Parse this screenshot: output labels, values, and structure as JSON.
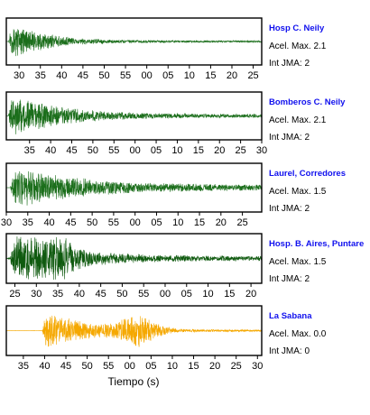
{
  "chart_data": {
    "type": "line",
    "xlabel": "Tiempo (s)",
    "panels": [
      {
        "station": "Hosp C. Neily",
        "acel_label": "Acel. Max. 2.1",
        "int_label": "Int JMA: 2",
        "color": "#1b6e1b",
        "xlim": [
          27,
          87
        ],
        "x_ticks": [
          30,
          35,
          40,
          45,
          50,
          55,
          60,
          65,
          70,
          75,
          80,
          85
        ],
        "tick_labels": [
          "30",
          "35",
          "40",
          "45",
          "50",
          "55",
          "00",
          "05",
          "10",
          "15",
          "20",
          "25"
        ],
        "onset_s": 27.5,
        "decay_s": 8,
        "peak_amp": 1.0,
        "coda_amp": 0.05,
        "bursts": []
      },
      {
        "station": "Bomberos C. Neily",
        "acel_label": "Acel. Max. 2.1",
        "int_label": "Int JMA: 2",
        "color": "#1b6e1b",
        "xlim": [
          29.5,
          90
        ],
        "x_ticks": [
          35,
          40,
          45,
          50,
          55,
          60,
          65,
          70,
          75,
          80,
          85,
          90
        ],
        "tick_labels": [
          "35",
          "40",
          "45",
          "50",
          "55",
          "00",
          "05",
          "10",
          "15",
          "20",
          "25",
          "30"
        ],
        "onset_s": 30,
        "decay_s": 12,
        "peak_amp": 1.0,
        "coda_amp": 0.08,
        "bursts": []
      },
      {
        "station": "Laurel, Corredores",
        "acel_label": "Acel. Max. 1.5",
        "int_label": "Int JMA: 2",
        "color": "#1b6e1b",
        "xlim": [
          30,
          89.5
        ],
        "x_ticks": [
          30,
          35,
          40,
          45,
          50,
          55,
          60,
          65,
          70,
          75,
          80,
          85
        ],
        "tick_labels": [
          "30",
          "35",
          "40",
          "45",
          "50",
          "55",
          "00",
          "05",
          "10",
          "15",
          "20",
          "25"
        ],
        "onset_s": 31,
        "decay_s": 16,
        "peak_amp": 0.9,
        "coda_amp": 0.12,
        "bursts": []
      },
      {
        "station": "Hosp. B. Aires, Puntare",
        "acel_label": "Acel. Max. 1.5",
        "int_label": "Int JMA: 2",
        "color": "#0f5a0f",
        "xlim": [
          23,
          82.5
        ],
        "x_ticks": [
          25,
          30,
          35,
          40,
          45,
          50,
          55,
          60,
          65,
          70,
          75,
          80
        ],
        "tick_labels": [
          "25",
          "30",
          "35",
          "40",
          "45",
          "50",
          "55",
          "00",
          "05",
          "10",
          "15",
          "20"
        ],
        "onset_s": 24,
        "decay_s": 13,
        "peak_amp": 1.0,
        "coda_amp": 0.1,
        "bursts": [
          {
            "t": 33,
            "amp": 0.9,
            "width": 5
          }
        ]
      },
      {
        "station": "La Sabana",
        "acel_label": "Acel. Max. 0.0",
        "int_label": "Int JMA: 0",
        "color": "#f5a800",
        "xlim": [
          31,
          91
        ],
        "x_ticks": [
          35,
          40,
          45,
          50,
          55,
          60,
          65,
          70,
          75,
          80,
          85,
          90
        ],
        "tick_labels": [
          "35",
          "40",
          "45",
          "50",
          "55",
          "00",
          "05",
          "10",
          "15",
          "20",
          "25",
          "30"
        ],
        "onset_s": 39.5,
        "decay_s": 10,
        "peak_amp": 1.0,
        "coda_amp": 0.04,
        "bursts": [
          {
            "t": 62,
            "amp": 0.6,
            "width": 5
          }
        ]
      }
    ]
  }
}
